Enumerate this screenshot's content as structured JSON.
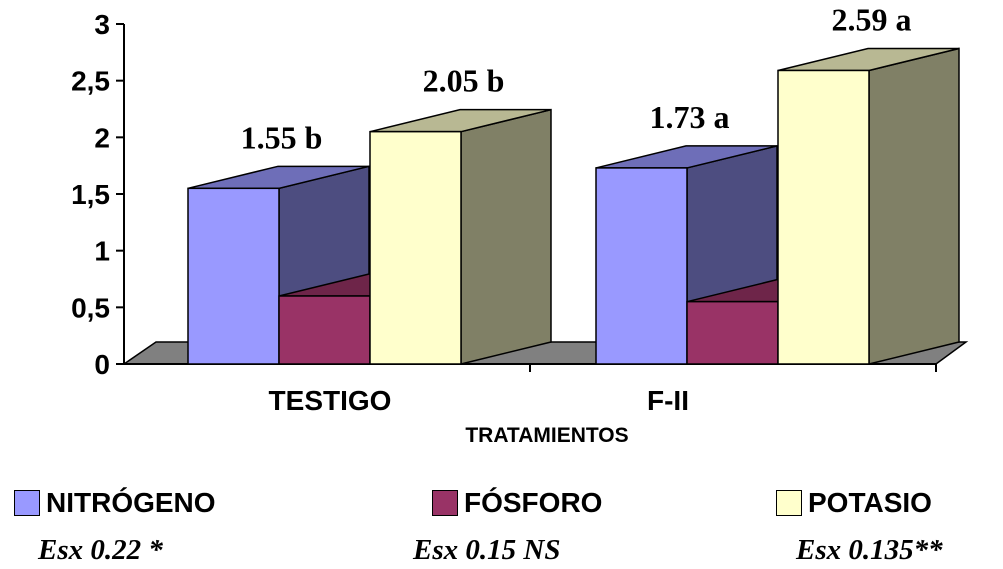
{
  "chart_data": {
    "type": "bar",
    "title": "",
    "xlabel": "TRATAMIENTOS",
    "ylabel": "",
    "ylim": [
      0,
      3
    ],
    "yticks": [
      0,
      0.5,
      1,
      1.5,
      2,
      2.5,
      3
    ],
    "ytick_labels": [
      "0",
      "0,5",
      "1",
      "1,5",
      "2",
      "2,5",
      "3"
    ],
    "categories": [
      "TESTIGO",
      "F-II"
    ],
    "grid": false,
    "legend_position": "bottom",
    "series": [
      {
        "name": "NITRÓGENO",
        "color": "#9999FF",
        "values": [
          1.55,
          1.73
        ],
        "labels": [
          "1.55 b",
          "1.73 a"
        ]
      },
      {
        "name": "FÓSFORO",
        "color": "#993366",
        "values": [
          0.6,
          0.55
        ],
        "labels": [
          "",
          ""
        ]
      },
      {
        "name": "POTASIO",
        "color": "#FFFFCC",
        "values": [
          2.05,
          2.59
        ],
        "labels": [
          "2.05  b",
          "2.59 a"
        ]
      }
    ],
    "annotations": [
      "Esx 0.22 *",
      "Esx 0.15 NS",
      "Esx 0.135**"
    ]
  }
}
